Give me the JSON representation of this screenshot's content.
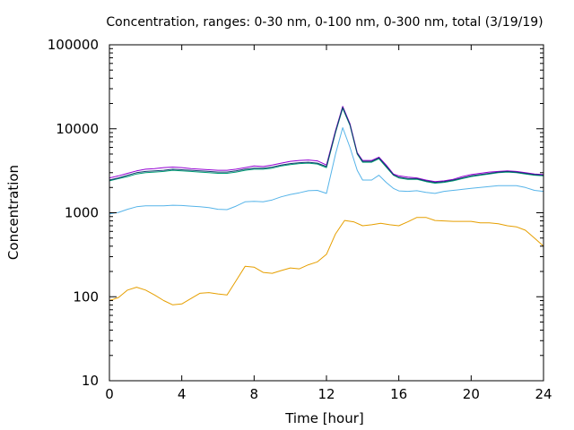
{
  "chart_data": {
    "type": "line",
    "title": "Concentration, ranges: 0-30 nm, 0-100 nm, 0-300 nm, total (3/19/19)",
    "xlabel": "Time [hour]",
    "ylabel": "Concentration",
    "xlim": [
      0,
      24
    ],
    "ylim": [
      10,
      100000
    ],
    "yscale": "log",
    "xticks": [
      0,
      4,
      8,
      12,
      16,
      20,
      24
    ],
    "xtick_labels": [
      "0",
      "4",
      "8",
      "12",
      "16",
      "20",
      "24"
    ],
    "yticks": [
      10,
      100,
      1000,
      10000,
      100000
    ],
    "ytick_labels": [
      "10",
      "100",
      "1000",
      "10000",
      "100000"
    ],
    "grid": false,
    "series": [
      {
        "color": "#e69f00",
        "x": [
          0,
          0.5,
          1,
          1.5,
          2,
          2.5,
          3,
          3.5,
          4,
          4.5,
          5,
          5.5,
          6,
          6.5,
          7,
          7.5,
          8,
          8.5,
          9,
          9.5,
          10,
          10.5,
          11,
          11.5,
          12,
          12.5,
          13,
          13.5,
          14,
          14.5,
          15,
          15.5,
          16,
          16.5,
          17,
          17.5,
          18,
          18.5,
          19,
          19.5,
          20,
          20.5,
          21,
          21.5,
          22,
          22.5,
          23,
          23.5,
          24
        ],
        "y": [
          90,
          98,
          120,
          130,
          120,
          105,
          90,
          80,
          82,
          95,
          110,
          112,
          108,
          105,
          155,
          230,
          225,
          195,
          190,
          205,
          220,
          215,
          240,
          260,
          320,
          560,
          810,
          780,
          700,
          720,
          750,
          720,
          700,
          780,
          880,
          880,
          810,
          800,
          790,
          790,
          790,
          760,
          760,
          740,
          700,
          680,
          620,
          500,
          400
        ]
      },
      {
        "color": "#56b4e9",
        "x": [
          0,
          0.5,
          1,
          1.5,
          2,
          2.5,
          3,
          3.5,
          4,
          4.5,
          5,
          5.5,
          6,
          6.5,
          7,
          7.5,
          8,
          8.5,
          9,
          9.5,
          10,
          10.5,
          11,
          11.5,
          12,
          12.5,
          12.9,
          13.3,
          13.7,
          14,
          14.5,
          14.9,
          15.3,
          15.7,
          16,
          16.5,
          17,
          17.5,
          18,
          18.5,
          19,
          19.5,
          20,
          20.5,
          21,
          21.5,
          22,
          22.5,
          23,
          23.5,
          24
        ],
        "y": [
          970,
          1010,
          1100,
          1180,
          1210,
          1210,
          1210,
          1230,
          1220,
          1200,
          1180,
          1150,
          1100,
          1090,
          1200,
          1350,
          1370,
          1350,
          1420,
          1550,
          1650,
          1730,
          1830,
          1850,
          1700,
          5000,
          10300,
          6000,
          3200,
          2450,
          2450,
          2800,
          2300,
          1950,
          1820,
          1800,
          1830,
          1750,
          1700,
          1800,
          1850,
          1900,
          1950,
          2000,
          2050,
          2100,
          2100,
          2100,
          2000,
          1850,
          1800
        ]
      },
      {
        "color": "#009e73",
        "x": [
          0,
          0.5,
          1,
          1.5,
          2,
          2.5,
          3,
          3.5,
          4,
          4.5,
          5,
          5.5,
          6,
          6.5,
          7,
          7.5,
          8,
          8.5,
          9,
          9.5,
          10,
          10.5,
          11,
          11.5,
          12,
          12.5,
          12.9,
          13.3,
          13.7,
          14,
          14.5,
          14.9,
          15.3,
          15.7,
          16,
          16.5,
          17,
          17.5,
          18,
          18.5,
          19,
          19.5,
          20,
          20.5,
          21,
          21.5,
          22,
          22.5,
          23,
          23.5,
          24
        ],
        "y": [
          2400,
          2550,
          2700,
          2900,
          3000,
          3050,
          3100,
          3200,
          3150,
          3100,
          3050,
          3000,
          2950,
          2950,
          3050,
          3200,
          3300,
          3300,
          3400,
          3600,
          3750,
          3850,
          3900,
          3800,
          3450,
          9000,
          17500,
          11000,
          5000,
          4000,
          4000,
          4400,
          3500,
          2800,
          2600,
          2500,
          2500,
          2350,
          2250,
          2300,
          2400,
          2550,
          2700,
          2800,
          2900,
          3000,
          3050,
          3000,
          2900,
          2800,
          2750
        ]
      },
      {
        "color": "#9400d3",
        "x": [
          0,
          0.5,
          1,
          1.5,
          2,
          2.5,
          3,
          3.5,
          4,
          4.5,
          5,
          5.5,
          6,
          6.5,
          7,
          7.5,
          8,
          8.5,
          9,
          9.5,
          10,
          10.5,
          11,
          11.5,
          12,
          12.5,
          12.9,
          13.3,
          13.7,
          14,
          14.5,
          14.9,
          15.3,
          15.7,
          16,
          16.5,
          17,
          17.5,
          18,
          18.5,
          19,
          19.5,
          20,
          20.5,
          21,
          21.5,
          22,
          22.5,
          23,
          23.5,
          24
        ],
        "y": [
          2600,
          2750,
          2950,
          3150,
          3300,
          3350,
          3450,
          3500,
          3450,
          3350,
          3300,
          3250,
          3200,
          3200,
          3300,
          3450,
          3600,
          3550,
          3700,
          3900,
          4100,
          4200,
          4250,
          4150,
          3700,
          9500,
          18500,
          11500,
          5200,
          4200,
          4200,
          4600,
          3700,
          2900,
          2750,
          2650,
          2600,
          2450,
          2350,
          2400,
          2500,
          2700,
          2850,
          2950,
          3050,
          3100,
          3150,
          3100,
          3000,
          2900,
          2850
        ]
      },
      {
        "color": "#0f3b6e",
        "x": [
          0,
          0.5,
          1,
          1.5,
          2,
          2.5,
          3,
          3.5,
          4,
          4.5,
          5,
          5.5,
          6,
          6.5,
          7,
          7.5,
          8,
          8.5,
          9,
          9.5,
          10,
          10.5,
          11,
          11.5,
          12,
          12.5,
          12.9,
          13.3,
          13.7,
          14,
          14.5,
          14.9,
          15.3,
          15.7,
          16,
          16.5,
          17,
          17.5,
          18,
          18.5,
          19,
          19.5,
          20,
          20.5,
          21,
          21.5,
          22,
          22.5,
          23,
          23.5,
          24
        ],
        "y": [
          2450,
          2600,
          2800,
          3000,
          3100,
          3150,
          3200,
          3300,
          3250,
          3200,
          3150,
          3100,
          3050,
          3050,
          3150,
          3300,
          3400,
          3400,
          3500,
          3700,
          3850,
          3950,
          4000,
          3900,
          3550,
          9200,
          18000,
          11200,
          5100,
          4100,
          4100,
          4500,
          3600,
          2850,
          2650,
          2550,
          2550,
          2400,
          2300,
          2350,
          2450,
          2600,
          2750,
          2850,
          2950,
          3050,
          3100,
          3050,
          2950,
          2850,
          2800
        ]
      }
    ]
  }
}
